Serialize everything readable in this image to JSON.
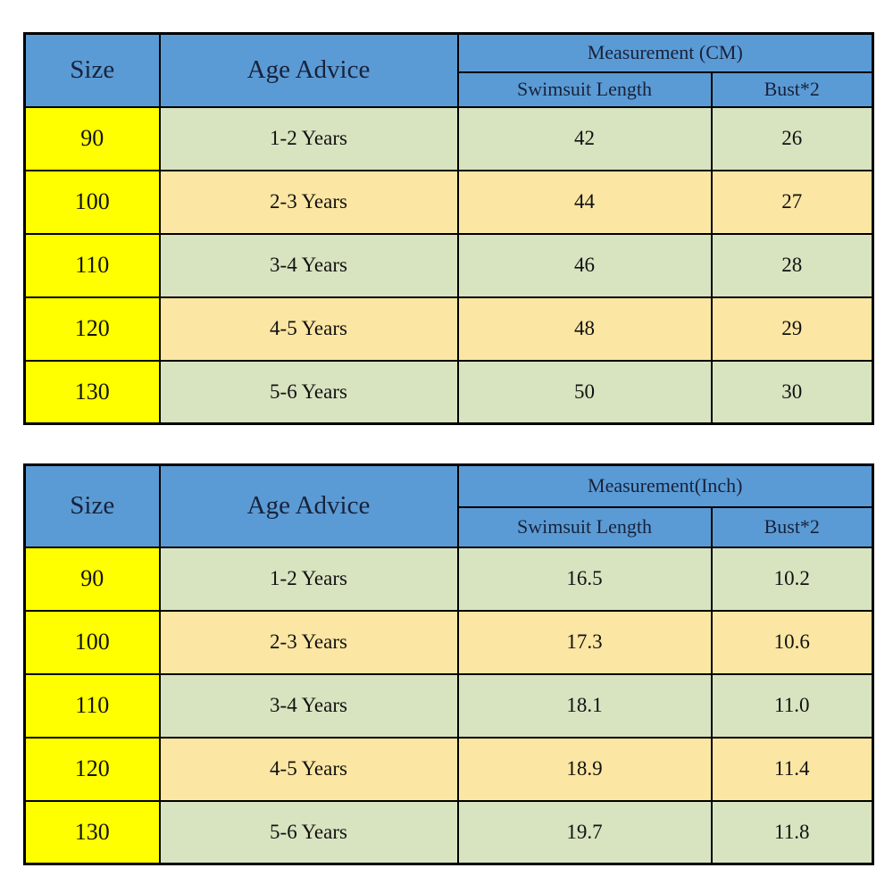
{
  "page": {
    "background": "#ffffff"
  },
  "colors": {
    "header_blue": "#5B9BD5",
    "size_column_yellow": "#FFFF00",
    "row_green": "#D8E3C0",
    "row_tan": "#FBE6A3",
    "border": "#000000",
    "header_text": "#17223B",
    "body_text": "#111111"
  },
  "tables": [
    {
      "id": "cm",
      "headers": {
        "size": "Size",
        "age": "Age Advice",
        "measurement": "Measurement (CM)",
        "length": "Swimsuit Length",
        "bust": "Bust*2"
      },
      "rows": [
        {
          "size": "90",
          "age": "1-2 Years",
          "length": "42",
          "bust": "26"
        },
        {
          "size": "100",
          "age": "2-3 Years",
          "length": "44",
          "bust": "27"
        },
        {
          "size": "110",
          "age": "3-4 Years",
          "length": "46",
          "bust": "28"
        },
        {
          "size": "120",
          "age": "4-5 Years",
          "length": "48",
          "bust": "29"
        },
        {
          "size": "130",
          "age": "5-6 Years",
          "length": "50",
          "bust": "30"
        }
      ]
    },
    {
      "id": "inch",
      "headers": {
        "size": "Size",
        "age": "Age Advice",
        "measurement": "Measurement(Inch)",
        "length": "Swimsuit Length",
        "bust": "Bust*2"
      },
      "rows": [
        {
          "size": "90",
          "age": "1-2 Years",
          "length": "16.5",
          "bust": "10.2"
        },
        {
          "size": "100",
          "age": "2-3 Years",
          "length": "17.3",
          "bust": "10.6"
        },
        {
          "size": "110",
          "age": "3-4 Years",
          "length": "18.1",
          "bust": "11.0"
        },
        {
          "size": "120",
          "age": "4-5 Years",
          "length": "18.9",
          "bust": "11.4"
        },
        {
          "size": "130",
          "age": "5-6 Years",
          "length": "19.7",
          "bust": "11.8"
        }
      ]
    }
  ],
  "chart_data": [
    {
      "type": "table",
      "title": "Measurement (CM)",
      "columns": [
        "Size",
        "Age Advice",
        "Swimsuit Length",
        "Bust*2"
      ],
      "rows": [
        [
          "90",
          "1-2 Years",
          "42",
          "26"
        ],
        [
          "100",
          "2-3 Years",
          "44",
          "27"
        ],
        [
          "110",
          "3-4 Years",
          "46",
          "28"
        ],
        [
          "120",
          "4-5 Years",
          "48",
          "29"
        ],
        [
          "130",
          "5-6 Years",
          "50",
          "30"
        ]
      ]
    },
    {
      "type": "table",
      "title": "Measurement(Inch)",
      "columns": [
        "Size",
        "Age Advice",
        "Swimsuit Length",
        "Bust*2"
      ],
      "rows": [
        [
          "90",
          "1-2 Years",
          "16.5",
          "10.2"
        ],
        [
          "100",
          "2-3 Years",
          "17.3",
          "10.6"
        ],
        [
          "110",
          "3-4 Years",
          "18.1",
          "11.0"
        ],
        [
          "120",
          "4-5 Years",
          "18.9",
          "11.4"
        ],
        [
          "130",
          "5-6 Years",
          "19.7",
          "11.8"
        ]
      ]
    }
  ]
}
